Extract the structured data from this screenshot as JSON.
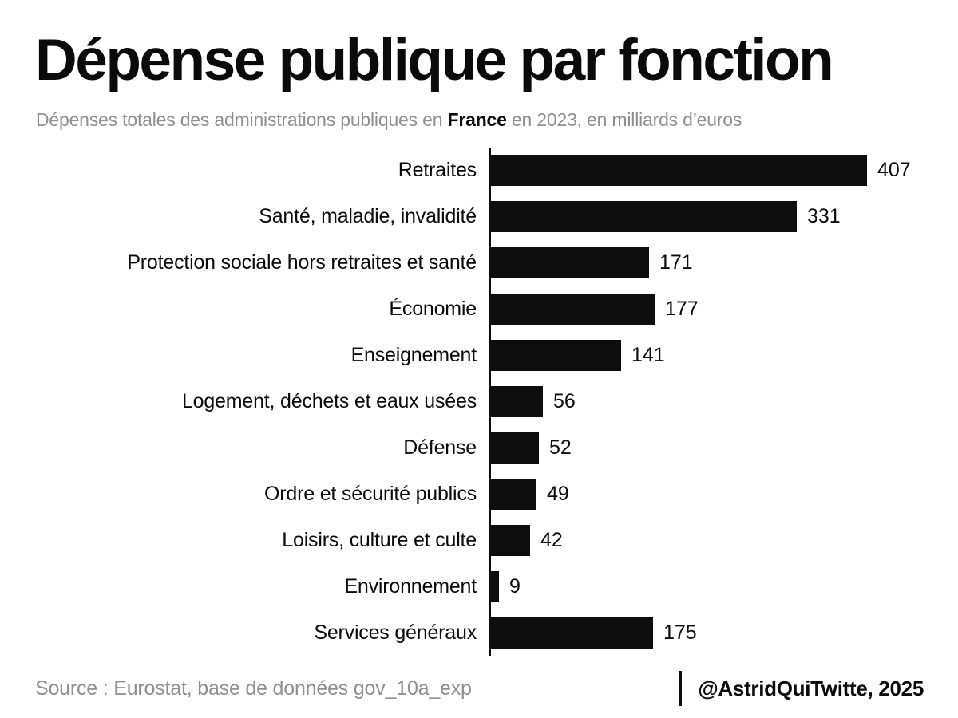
{
  "header": {
    "title": "Dépense publique par fonction",
    "subtitle_prefix": "Dépenses totales des administrations publiques en ",
    "subtitle_bold": "France",
    "subtitle_suffix": " en 2023, en milliards d’euros"
  },
  "chart_data": {
    "type": "bar",
    "orientation": "horizontal",
    "title": "Dépense publique par fonction",
    "subtitle": "Dépenses totales des administrations publiques en France en 2023, en milliards d’euros",
    "unit": "milliards d’euros",
    "year": "2023",
    "categories": [
      "Retraites",
      "Santé, maladie, invalidité",
      "Protection sociale hors retraites et santé",
      "Économie",
      "Enseignement",
      "Logement, déchets et eaux usées",
      "Défense",
      "Ordre et sécurité publics",
      "Loisirs, culture et culte",
      "Environnement",
      "Services généraux"
    ],
    "values": [
      407,
      331,
      171,
      177,
      141,
      56,
      52,
      49,
      42,
      9,
      175
    ],
    "value_labels_shown": true,
    "xlim": [
      0,
      420
    ],
    "grid": false,
    "legend": false,
    "bar_color": "#0d0d0d",
    "background_color": "#ffffff",
    "text_color": "#0b0b0b",
    "muted_text_color": "#8f8f8f"
  },
  "footer": {
    "source": "Source : Eurostat, base de données gov_10a_exp",
    "credit": "@AstridQuiTwitte, 2025"
  }
}
